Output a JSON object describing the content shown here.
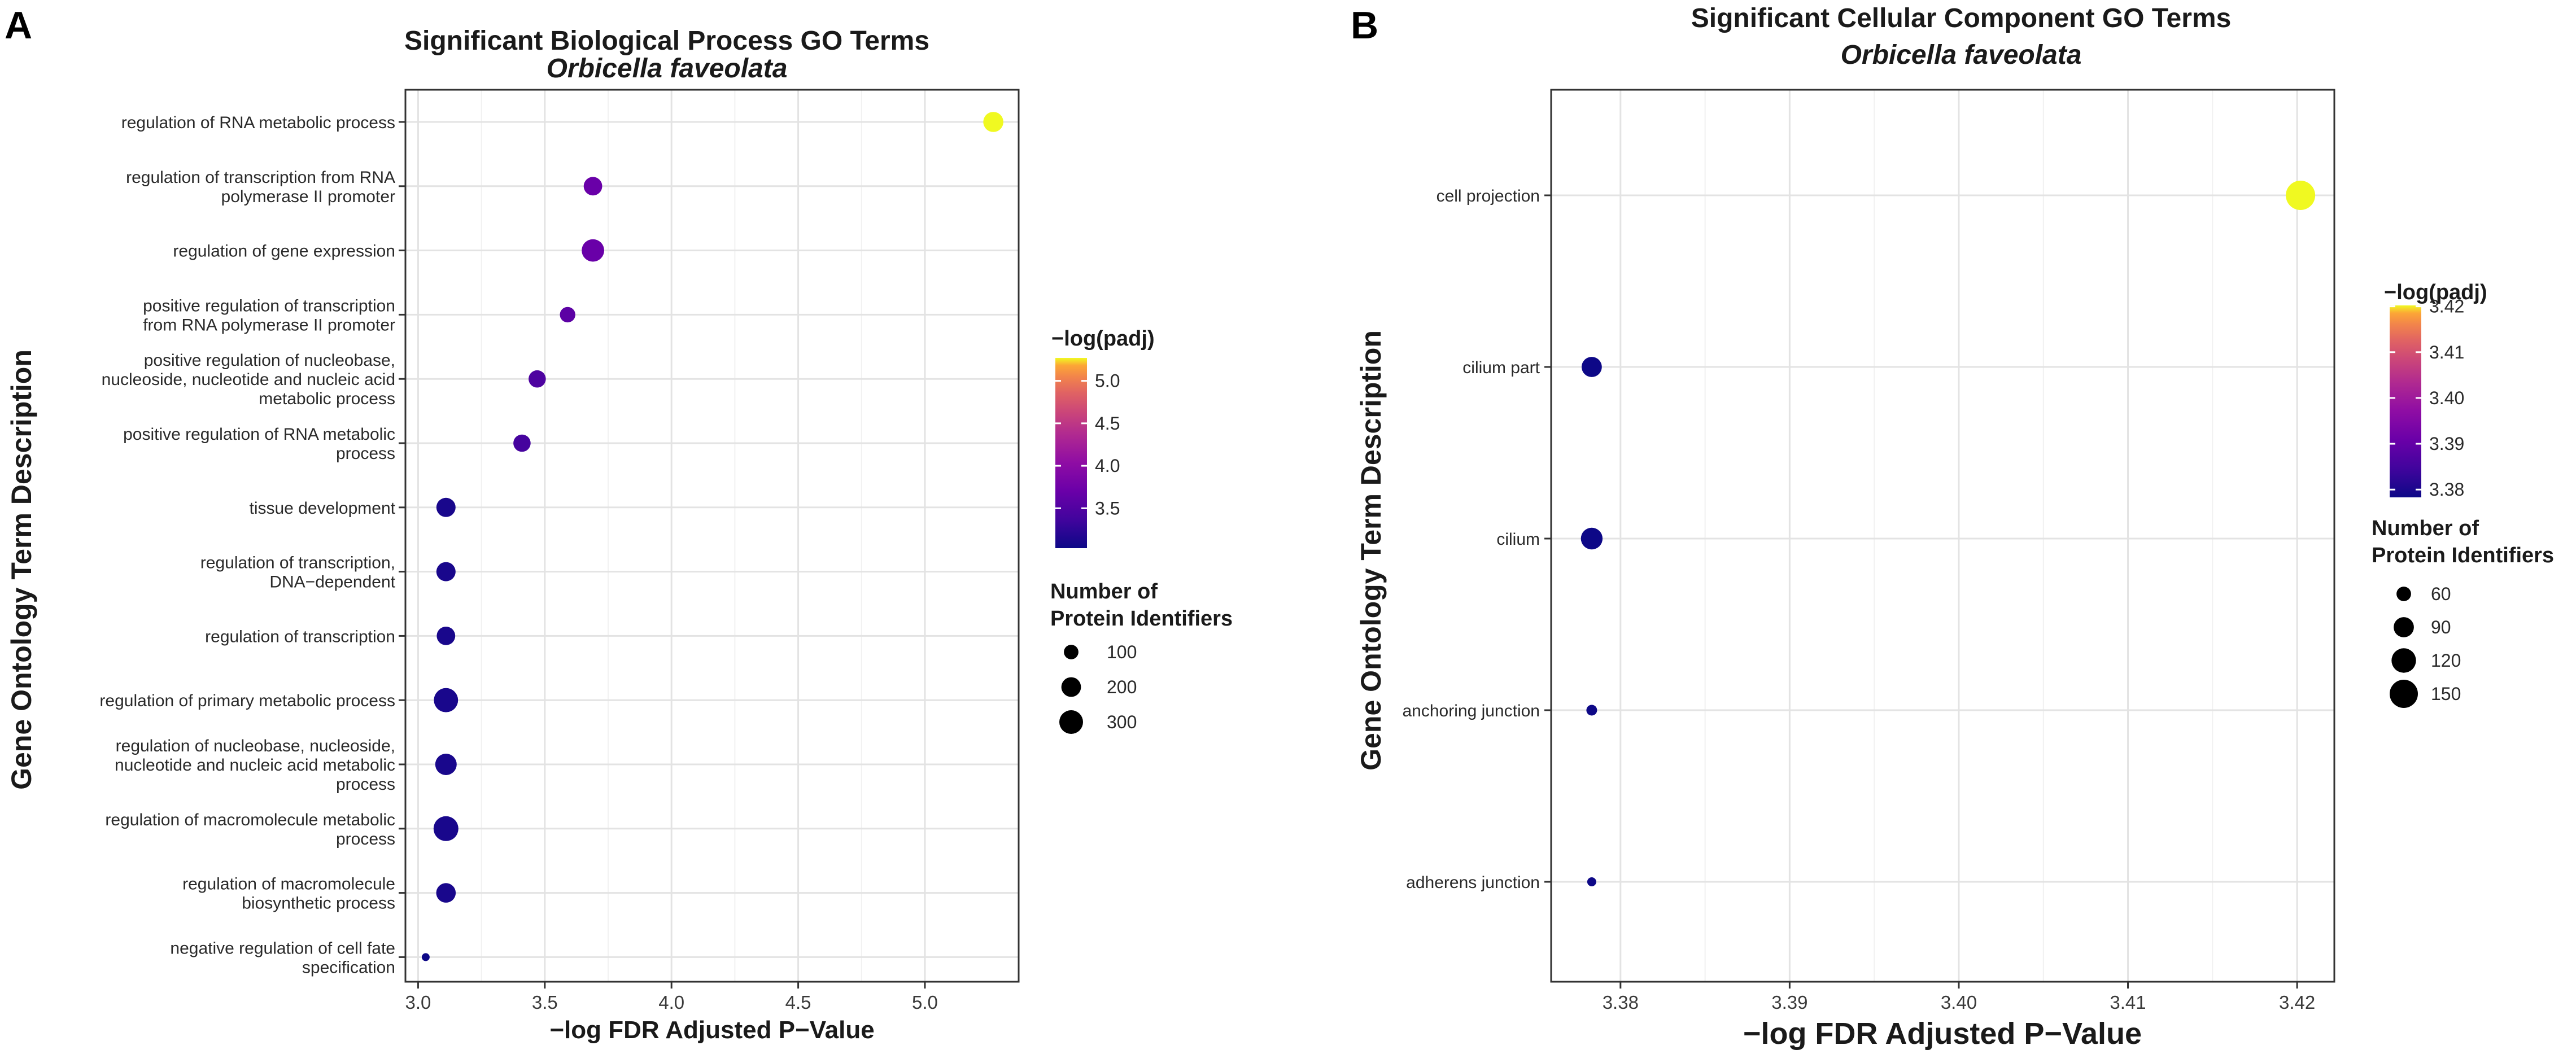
{
  "panels": {
    "a_label": "A",
    "b_label": "B"
  },
  "chart_data": [
    {
      "type": "scatter",
      "title": "Significant Biological Process GO Terms",
      "subtitle": "Orbicella faveolata",
      "xlabel": "−log FDR Adjusted P−Value",
      "ylabel": "Gene Ontology Term Description",
      "xlim": [
        2.95,
        5.37
      ],
      "xticks": [
        3.0,
        3.5,
        4.0,
        4.5,
        5.0
      ],
      "xtick_labels": [
        "3.0",
        "3.5",
        "4.0",
        "4.5",
        "5.0"
      ],
      "categories": [
        [
          "regulation of RNA metabolic process"
        ],
        [
          "regulation of transcription from RNA",
          "polymerase II promoter"
        ],
        [
          "regulation of gene expression"
        ],
        [
          "positive regulation of transcription",
          "from RNA polymerase II promoter"
        ],
        [
          "positive regulation of nucleobase,",
          "nucleoside, nucleotide and nucleic acid",
          "metabolic process"
        ],
        [
          "positive regulation of RNA metabolic",
          "process"
        ],
        [
          "tissue development"
        ],
        [
          "regulation of transcription,",
          "DNA−dependent"
        ],
        [
          "regulation of transcription"
        ],
        [
          "regulation of primary metabolic process"
        ],
        [
          "regulation of nucleobase, nucleoside,",
          "nucleotide and nucleic acid metabolic",
          "process"
        ],
        [
          "regulation of macromolecule metabolic",
          "process"
        ],
        [
          "regulation of macromolecule",
          "biosynthetic process"
        ],
        [
          "negative regulation of cell fate",
          "specification"
        ]
      ],
      "points": [
        {
          "x": 5.27,
          "neg_log_padj": 5.27,
          "count": 210
        },
        {
          "x": 3.69,
          "neg_log_padj": 3.69,
          "count": 175
        },
        {
          "x": 3.69,
          "neg_log_padj": 3.69,
          "count": 265
        },
        {
          "x": 3.59,
          "neg_log_padj": 3.59,
          "count": 115
        },
        {
          "x": 3.47,
          "neg_log_padj": 3.47,
          "count": 150
        },
        {
          "x": 3.41,
          "neg_log_padj": 3.41,
          "count": 150
        },
        {
          "x": 3.11,
          "neg_log_padj": 3.11,
          "count": 190
        },
        {
          "x": 3.11,
          "neg_log_padj": 3.11,
          "count": 190
        },
        {
          "x": 3.11,
          "neg_log_padj": 3.11,
          "count": 175
        },
        {
          "x": 3.11,
          "neg_log_padj": 3.11,
          "count": 310
        },
        {
          "x": 3.11,
          "neg_log_padj": 3.11,
          "count": 240
        },
        {
          "x": 3.11,
          "neg_log_padj": 3.11,
          "count": 330
        },
        {
          "x": 3.11,
          "neg_log_padj": 3.11,
          "count": 195
        },
        {
          "x": 3.03,
          "neg_log_padj": 3.03,
          "count": 15
        }
      ],
      "color_legend": {
        "title": "−log(padj)",
        "min": 3.03,
        "max": 5.27,
        "ticks": [
          3.5,
          4.0,
          4.5,
          5.0
        ],
        "tick_labels": [
          "3.5",
          "4.0",
          "4.5",
          "5.0"
        ]
      },
      "size_legend": {
        "title_lines": [
          "Number of",
          "Protein Identifiers"
        ],
        "values": [
          100,
          200,
          300
        ],
        "labels": [
          "100",
          "200",
          "300"
        ]
      },
      "size_range": [
        15,
        330
      ]
    },
    {
      "type": "scatter",
      "title": "Significant Cellular Component GO Terms",
      "subtitle": "Orbicella faveolata",
      "xlabel": "−log FDR Adjusted P−Value",
      "ylabel": "Gene Ontology Term Description",
      "xlim": [
        3.3759,
        3.4222
      ],
      "xticks": [
        3.38,
        3.39,
        3.4,
        3.41,
        3.42
      ],
      "xtick_labels": [
        "3.38",
        "3.39",
        "3.40",
        "3.41",
        "3.42"
      ],
      "categories": [
        [
          "cell projection"
        ],
        [
          "cilium part"
        ],
        [
          "cilium"
        ],
        [
          "anchoring junction"
        ],
        [
          "adherens junction"
        ]
      ],
      "points": [
        {
          "x": 3.4202,
          "neg_log_padj": 3.4202,
          "count": 160
        },
        {
          "x": 3.3783,
          "neg_log_padj": 3.3783,
          "count": 90
        },
        {
          "x": 3.3783,
          "neg_log_padj": 3.3783,
          "count": 100
        },
        {
          "x": 3.3783,
          "neg_log_padj": 3.3783,
          "count": 45
        },
        {
          "x": 3.3783,
          "neg_log_padj": 3.3783,
          "count": 40
        }
      ],
      "color_legend": {
        "title": "−log(padj)",
        "min": 3.3783,
        "max": 3.4202,
        "ticks": [
          3.38,
          3.39,
          3.4,
          3.41,
          3.42
        ],
        "tick_labels": [
          "3.38",
          "3.39",
          "3.40",
          "3.41",
          "3.42"
        ]
      },
      "size_legend": {
        "title_lines": [
          "Number of",
          "Protein Identifiers"
        ],
        "values": [
          60,
          90,
          120,
          150
        ],
        "labels": [
          "60",
          "90",
          "120",
          "150"
        ]
      },
      "size_range": [
        40,
        160
      ]
    }
  ]
}
